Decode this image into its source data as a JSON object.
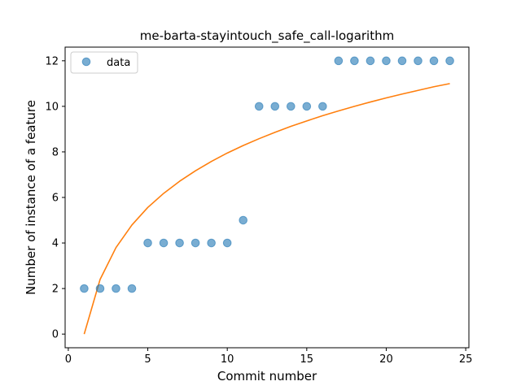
{
  "chart_data": {
    "type": "scatter",
    "title": "me-barta-stayintouch_safe_call-logarithm",
    "xlabel": "Commit number",
    "ylabel": "Number of instance of a feature",
    "xlim": [
      -0.2,
      25.2
    ],
    "ylim": [
      -0.6,
      12.6
    ],
    "xticks": [
      0,
      5,
      10,
      15,
      20,
      25
    ],
    "yticks": [
      0,
      2,
      4,
      6,
      8,
      10,
      12
    ],
    "grid": false,
    "legend_position": "top-left",
    "series": [
      {
        "name": "data",
        "type": "scatter",
        "color": "#1f77b4",
        "x": [
          1,
          2,
          3,
          4,
          5,
          6,
          7,
          8,
          9,
          10,
          11,
          12,
          13,
          14,
          15,
          16,
          17,
          18,
          19,
          20,
          21,
          22,
          23,
          24
        ],
        "y": [
          2,
          2,
          2,
          2,
          4,
          4,
          4,
          4,
          4,
          4,
          5,
          10,
          10,
          10,
          10,
          10,
          12,
          12,
          12,
          12,
          12,
          12,
          12,
          12
        ]
      },
      {
        "type": "line",
        "color": "#ff7f0e",
        "x": [
          1,
          2,
          3,
          4,
          5,
          6,
          7,
          8,
          9,
          10,
          11,
          12,
          13,
          14,
          15,
          16,
          17,
          18,
          19,
          20,
          21,
          22,
          23,
          24
        ],
        "y": [
          0,
          2.4,
          3.8,
          4.79,
          5.56,
          6.18,
          6.71,
          7.17,
          7.58,
          7.95,
          8.28,
          8.58,
          8.86,
          9.12,
          9.36,
          9.59,
          9.8,
          10.0,
          10.19,
          10.37,
          10.54,
          10.7,
          10.86,
          11.0
        ]
      }
    ]
  }
}
